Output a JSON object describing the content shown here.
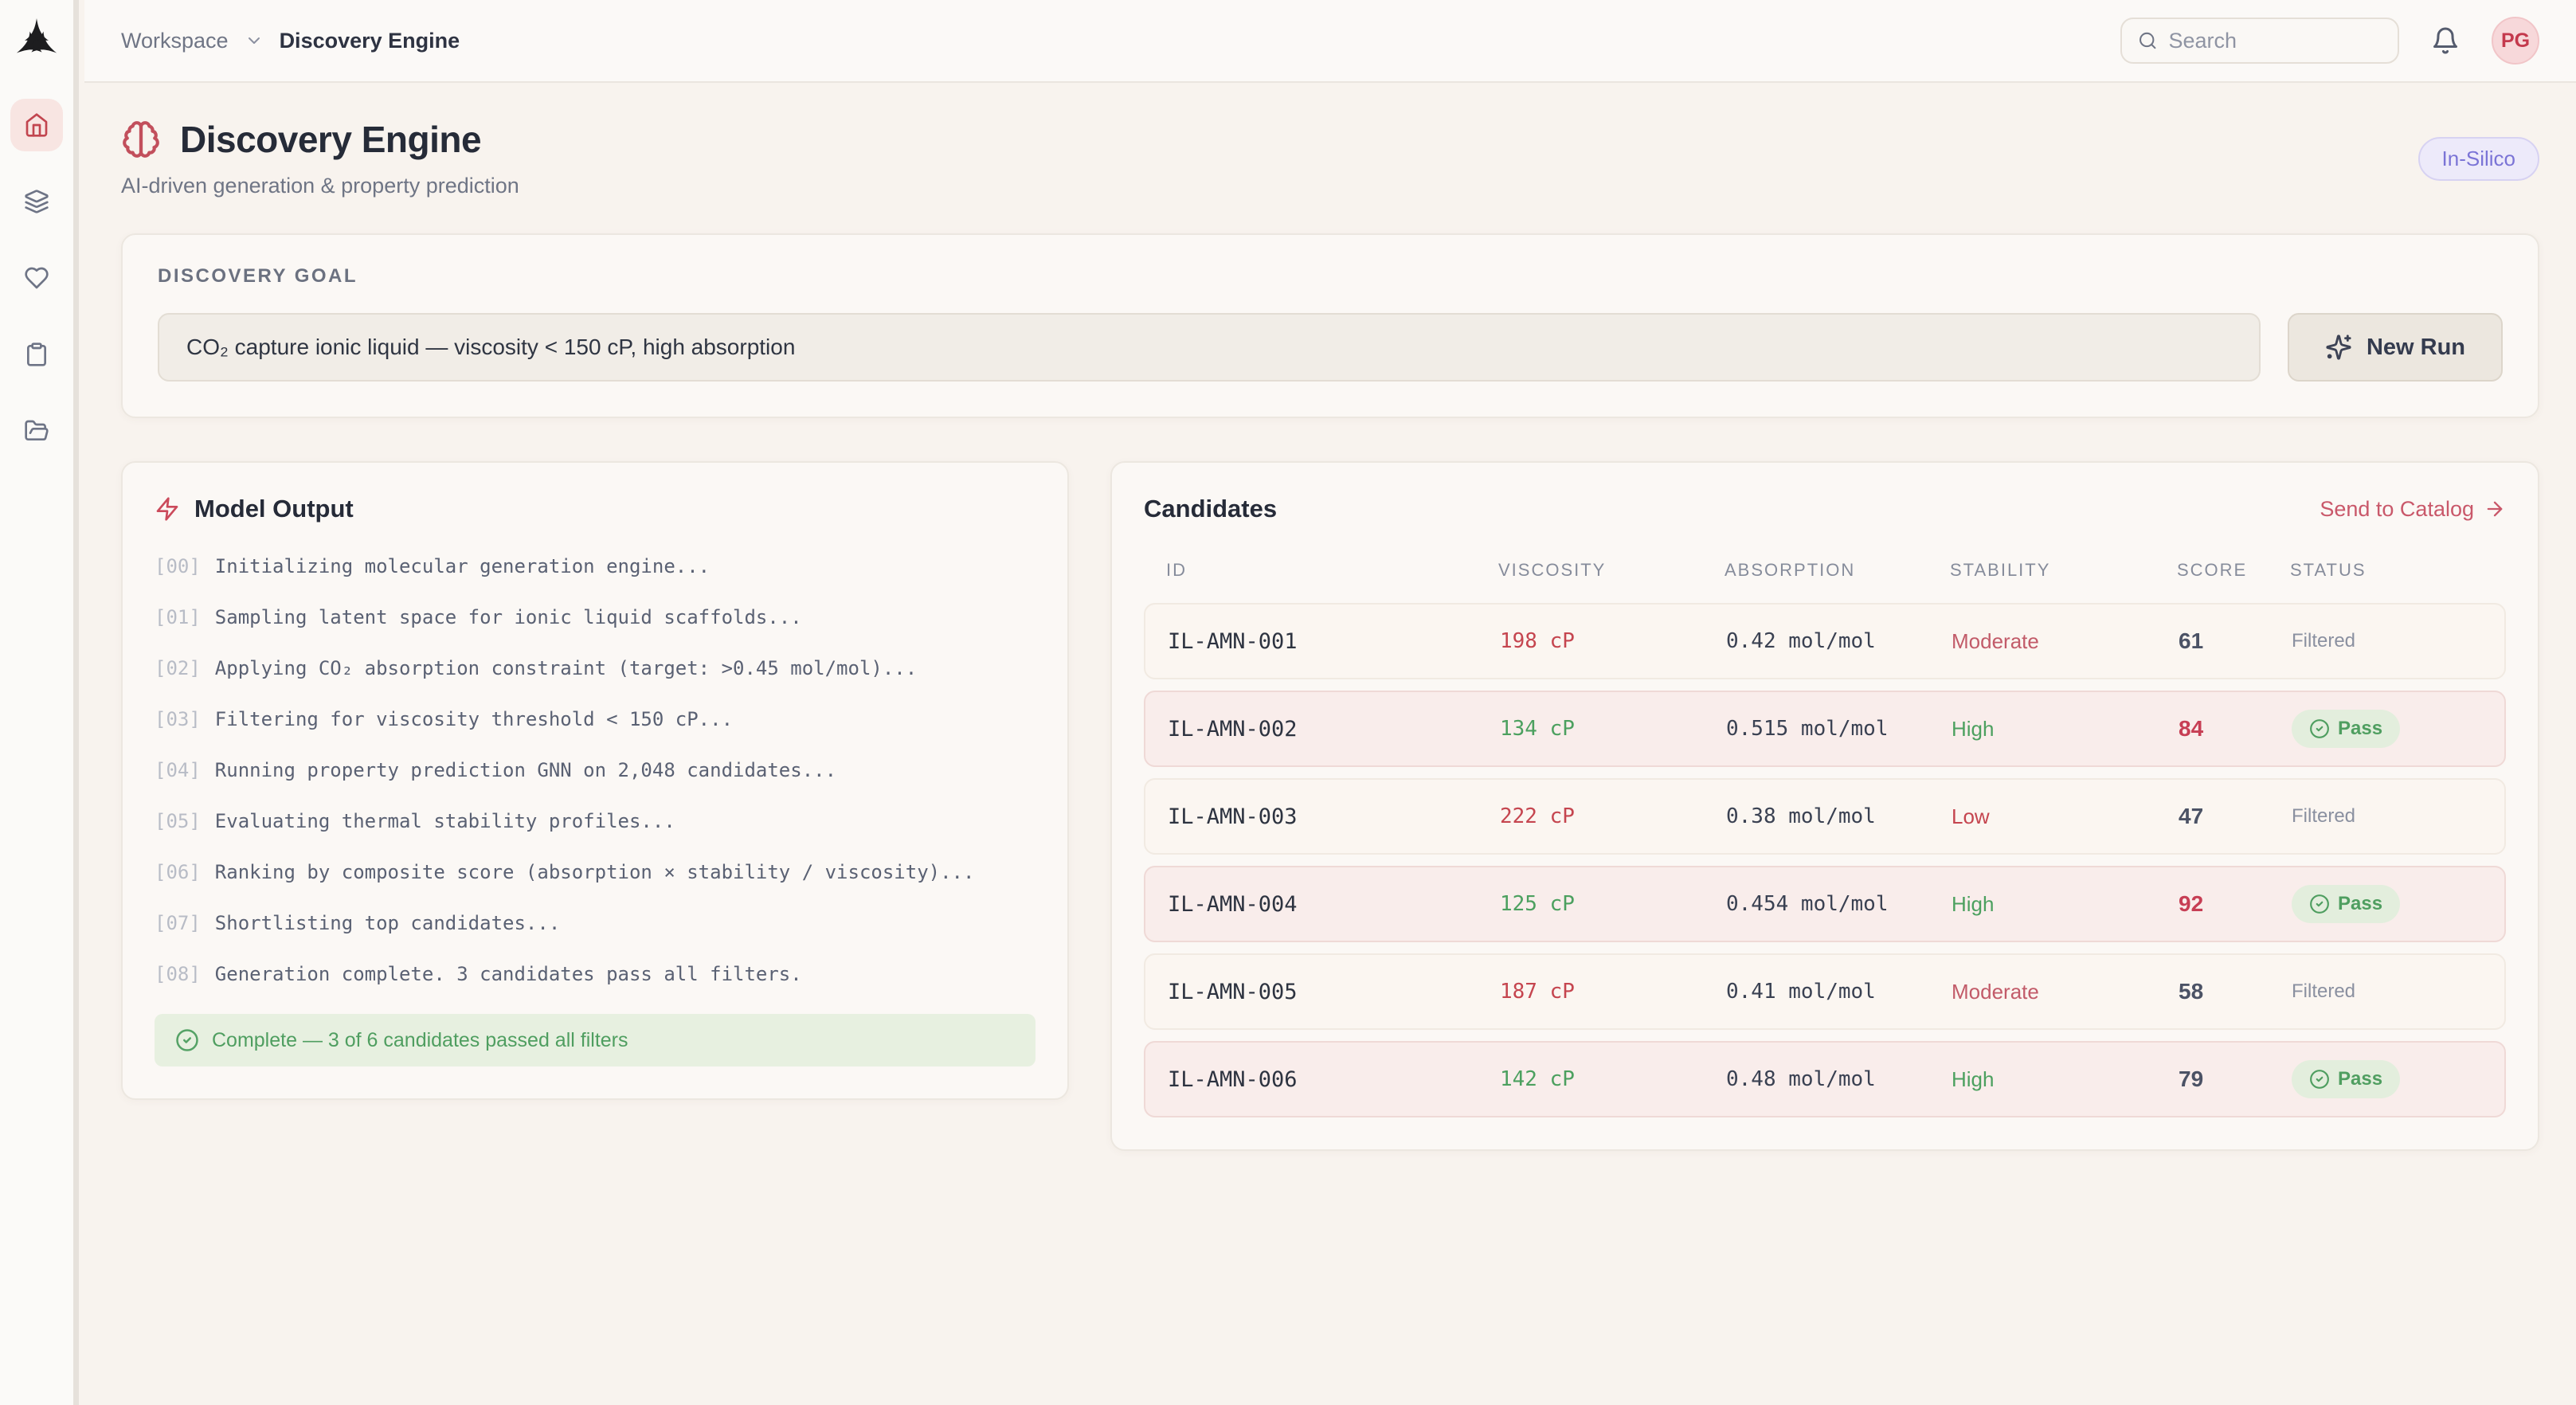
{
  "colors": {
    "accent_rose": "#c8465a",
    "pass_green": "#4f9e60",
    "fail_red": "#c5454f",
    "badge_indigo": "#7b74d6"
  },
  "topbar": {
    "breadcrumb_root": "Workspace",
    "breadcrumb_current": "Discovery Engine",
    "search_placeholder": "Search",
    "avatar_initials": "PG"
  },
  "sidebar": {
    "items": [
      {
        "icon": "home",
        "active": true
      },
      {
        "icon": "layers",
        "active": false
      },
      {
        "icon": "heart",
        "active": false
      },
      {
        "icon": "clipboard",
        "active": false
      },
      {
        "icon": "folder-open",
        "active": false
      }
    ]
  },
  "header": {
    "title": "Discovery Engine",
    "subtitle": "AI-driven generation & property prediction",
    "badge": "In-Silico"
  },
  "goal": {
    "label": "DISCOVERY GOAL",
    "value": "CO₂ capture ionic liquid — viscosity < 150 cP, high absorption",
    "button": "New Run"
  },
  "model_output": {
    "title": "Model Output",
    "lines": [
      {
        "idx": "[00]",
        "text": "Initializing molecular generation engine..."
      },
      {
        "idx": "[01]",
        "text": "Sampling latent space for ionic liquid scaffolds..."
      },
      {
        "idx": "[02]",
        "text": "Applying CO₂ absorption constraint (target: >0.45 mol/mol)..."
      },
      {
        "idx": "[03]",
        "text": "Filtering for viscosity threshold < 150 cP..."
      },
      {
        "idx": "[04]",
        "text": "Running property prediction GNN on 2,048 candidates..."
      },
      {
        "idx": "[05]",
        "text": "Evaluating thermal stability profiles..."
      },
      {
        "idx": "[06]",
        "text": "Ranking by composite score (absorption × stability / viscosity)..."
      },
      {
        "idx": "[07]",
        "text": "Shortlisting top candidates..."
      },
      {
        "idx": "[08]",
        "text": "Generation complete. 3 candidates pass all filters."
      }
    ],
    "complete_message": "Complete — 3 of 6 candidates passed all filters"
  },
  "candidates": {
    "title": "Candidates",
    "action": "Send to Catalog",
    "columns": [
      "ID",
      "VISCOSITY",
      "ABSORPTION",
      "STABILITY",
      "SCORE",
      "STATUS"
    ],
    "rows": [
      {
        "id": "IL-AMN-001",
        "viscosity": "198 cP",
        "viscosity_state": "fail",
        "absorption": "0.42 mol/mol",
        "stability": "Moderate",
        "stability_state": "moderate",
        "score": "61",
        "score_state": "normal",
        "status": "Filtered",
        "status_state": "filtered"
      },
      {
        "id": "IL-AMN-002",
        "viscosity": "134 cP",
        "viscosity_state": "pass",
        "absorption": "0.515 mol/mol",
        "stability": "High",
        "stability_state": "high",
        "score": "84",
        "score_state": "highlight",
        "status": "Pass",
        "status_state": "pass"
      },
      {
        "id": "IL-AMN-003",
        "viscosity": "222 cP",
        "viscosity_state": "fail",
        "absorption": "0.38 mol/mol",
        "stability": "Low",
        "stability_state": "low",
        "score": "47",
        "score_state": "normal",
        "status": "Filtered",
        "status_state": "filtered"
      },
      {
        "id": "IL-AMN-004",
        "viscosity": "125 cP",
        "viscosity_state": "pass",
        "absorption": "0.454 mol/mol",
        "stability": "High",
        "stability_state": "high",
        "score": "92",
        "score_state": "highlight",
        "status": "Pass",
        "status_state": "pass"
      },
      {
        "id": "IL-AMN-005",
        "viscosity": "187 cP",
        "viscosity_state": "fail",
        "absorption": "0.41 mol/mol",
        "stability": "Moderate",
        "stability_state": "moderate",
        "score": "58",
        "score_state": "normal",
        "status": "Filtered",
        "status_state": "filtered"
      },
      {
        "id": "IL-AMN-006",
        "viscosity": "142 cP",
        "viscosity_state": "pass",
        "absorption": "0.48 mol/mol",
        "stability": "High",
        "stability_state": "high",
        "score": "79",
        "score_state": "normal",
        "status": "Pass",
        "status_state": "pass"
      }
    ]
  }
}
